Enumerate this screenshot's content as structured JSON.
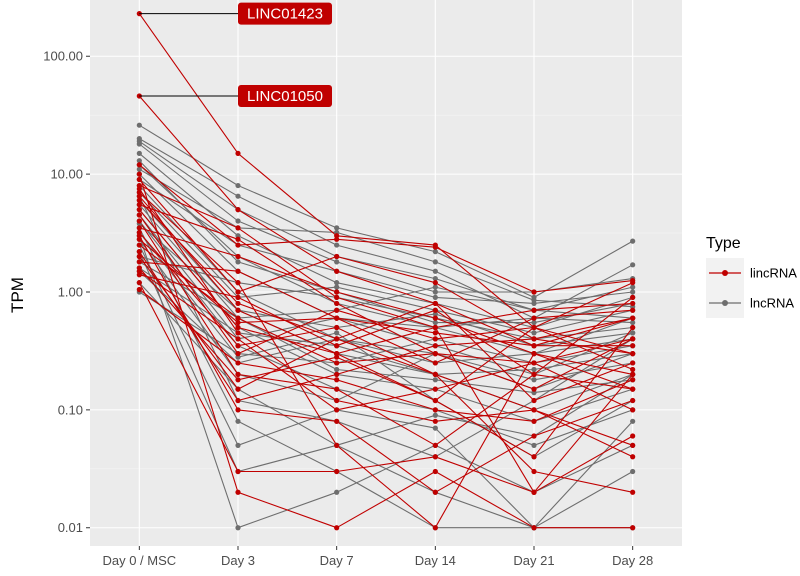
{
  "chart_data": {
    "type": "line",
    "title": "",
    "xlabel": "",
    "ylabel": "TPM",
    "y_scale": "log10",
    "ylim": [
      0.007,
      300
    ],
    "y_ticks": [
      0.01,
      0.1,
      1,
      10,
      100
    ],
    "y_tick_labels": [
      "0.01",
      "0.10",
      "1.00",
      "10.00",
      "100.00"
    ],
    "categories": [
      "Day 0 / MSC",
      "Day 3",
      "Day 7",
      "Day 14",
      "Day 21",
      "Day 28"
    ],
    "grid": true,
    "legend": {
      "title": "Type",
      "placement": "right",
      "entries": [
        {
          "label": "lincRNA",
          "color": "#c00000"
        },
        {
          "label": "lncRNA",
          "color": "#6e6e6e"
        }
      ]
    },
    "annotations": [
      {
        "label": "LINC01423",
        "x": "Day 0 / MSC",
        "y": 230
      },
      {
        "label": "LINC01050",
        "x": "Day 0 / MSC",
        "y": 46
      }
    ],
    "colors": {
      "lincRNA": "#c00000",
      "lncRNA": "#6e6e6e",
      "panel": "#ebebeb",
      "grid": "#ffffff"
    },
    "series": [
      {
        "type": "lincRNA",
        "values": [
          230,
          15,
          3,
          2.5,
          0.5,
          1.2
        ]
      },
      {
        "type": "lincRNA",
        "values": [
          46,
          5,
          1.5,
          0.8,
          0.35,
          0.6
        ]
      },
      {
        "type": "lincRNA",
        "values": [
          12,
          2.5,
          2.8,
          2.4,
          1.0,
          1.25
        ]
      },
      {
        "type": "lincRNA",
        "values": [
          10,
          0.02,
          0.01,
          0.03,
          0.01,
          0.01
        ]
      },
      {
        "type": "lincRNA",
        "values": [
          8,
          3.5,
          0.9,
          0.5,
          0.02,
          0.2
        ]
      },
      {
        "type": "lincRNA",
        "values": [
          7,
          1.2,
          0.05,
          0.01,
          0.3,
          0.15
        ]
      },
      {
        "type": "lincRNA",
        "values": [
          6,
          0.8,
          0.4,
          0.2,
          0.1,
          0.04
        ]
      },
      {
        "type": "lincRNA",
        "values": [
          5,
          0.5,
          0.3,
          0.12,
          0.04,
          0.5
        ]
      },
      {
        "type": "lincRNA",
        "values": [
          4.5,
          0.3,
          0.7,
          0.4,
          0.5,
          0.3
        ]
      },
      {
        "type": "lincRNA",
        "values": [
          4,
          0.2,
          0.15,
          0.05,
          0.2,
          0.9
        ]
      },
      {
        "type": "lincRNA",
        "values": [
          3.5,
          2.0,
          1.0,
          0.6,
          0.3,
          0.2
        ]
      },
      {
        "type": "lincRNA",
        "values": [
          3,
          0.1,
          0.08,
          0.02,
          0.06,
          0.12
        ]
      },
      {
        "type": "lincRNA",
        "values": [
          2.5,
          0.6,
          0.25,
          0.3,
          0.15,
          0.4
        ]
      },
      {
        "type": "lincRNA",
        "values": [
          2,
          0.15,
          0.4,
          0.8,
          0.12,
          0.25
        ]
      },
      {
        "type": "lincRNA",
        "values": [
          1.8,
          1.5,
          0.6,
          0.25,
          0.6,
          0.7
        ]
      },
      {
        "type": "lincRNA",
        "values": [
          1.5,
          0.4,
          0.1,
          0.15,
          0.25,
          0.1
        ]
      },
      {
        "type": "lincRNA",
        "values": [
          1.2,
          0.03,
          0.03,
          0.04,
          0.02,
          0.06
        ]
      },
      {
        "type": "lincRNA",
        "values": [
          1.05,
          0.25,
          0.18,
          0.1,
          0.08,
          0.18
        ]
      },
      {
        "type": "lincRNA",
        "values": [
          9,
          1.0,
          2.0,
          1.2,
          0.4,
          0.3
        ]
      },
      {
        "type": "lincRNA",
        "values": [
          6.5,
          0.7,
          0.3,
          0.5,
          0.7,
          0.8
        ]
      },
      {
        "type": "lincRNA",
        "values": [
          3.2,
          0.35,
          0.5,
          0.2,
          0.03,
          0.02
        ]
      },
      {
        "type": "lincRNA",
        "values": [
          2.2,
          0.12,
          0.2,
          0.35,
          0.4,
          0.6
        ]
      },
      {
        "type": "lincRNA",
        "values": [
          1.4,
          0.9,
          0.35,
          0.7,
          0.2,
          0.15
        ]
      },
      {
        "type": "lincRNA",
        "values": [
          7.5,
          0.45,
          0.12,
          0.08,
          0.1,
          0.05
        ]
      },
      {
        "type": "lincRNA",
        "values": [
          5.5,
          2.8,
          0.8,
          0.3,
          0.25,
          0.4
        ]
      },
      {
        "type": "lincRNA",
        "values": [
          2.8,
          0.55,
          0.6,
          0.45,
          0.35,
          0.35
        ]
      },
      {
        "type": "lincRNA",
        "values": [
          1.6,
          0.18,
          0.28,
          0.12,
          0.5,
          0.22
        ]
      },
      {
        "type": "lncRNA",
        "values": [
          26,
          8,
          3.5,
          2.2,
          0.9,
          2.7
        ]
      },
      {
        "type": "lncRNA",
        "values": [
          20,
          6.5,
          2.5,
          1.5,
          0.6,
          1.7
        ]
      },
      {
        "type": "lncRNA",
        "values": [
          18,
          4.0,
          1.8,
          1.0,
          1.0,
          1.3
        ]
      },
      {
        "type": "lncRNA",
        "values": [
          15,
          3.0,
          1.2,
          0.8,
          0.5,
          0.9
        ]
      },
      {
        "type": "lncRNA",
        "values": [
          12,
          2.0,
          0.8,
          0.5,
          0.3,
          0.6
        ]
      },
      {
        "type": "lncRNA",
        "values": [
          10,
          1.5,
          0.6,
          0.35,
          0.2,
          0.45
        ]
      },
      {
        "type": "lncRNA",
        "values": [
          8,
          1.0,
          0.4,
          0.3,
          0.15,
          0.3
        ]
      },
      {
        "type": "lncRNA",
        "values": [
          6,
          0.7,
          0.3,
          0.2,
          0.1,
          0.2
        ]
      },
      {
        "type": "lncRNA",
        "values": [
          5,
          0.5,
          0.2,
          0.15,
          0.08,
          0.15
        ]
      },
      {
        "type": "lncRNA",
        "values": [
          4,
          0.35,
          0.15,
          0.1,
          0.05,
          0.1
        ]
      },
      {
        "type": "lncRNA",
        "values": [
          3.5,
          0.08,
          0.03,
          0.01,
          0.01,
          0.03
        ]
      },
      {
        "type": "lncRNA",
        "values": [
          3,
          0.01,
          0.02,
          0.05,
          0.02,
          0.05
        ]
      },
      {
        "type": "lncRNA",
        "values": [
          2.5,
          0.05,
          0.1,
          0.07,
          0.01,
          0.08
        ]
      },
      {
        "type": "lncRNA",
        "values": [
          2,
          1.2,
          0.9,
          0.6,
          0.4,
          0.5
        ]
      },
      {
        "type": "lncRNA",
        "values": [
          1.8,
          0.6,
          0.7,
          1.1,
          0.7,
          0.6
        ]
      },
      {
        "type": "lncRNA",
        "values": [
          1.5,
          0.25,
          0.4,
          0.25,
          0.3,
          0.4
        ]
      },
      {
        "type": "lncRNA",
        "values": [
          1.2,
          0.15,
          0.05,
          0.02,
          0.01,
          0.01
        ]
      },
      {
        "type": "lncRNA",
        "values": [
          1.0,
          0.3,
          0.25,
          0.4,
          0.25,
          0.35
        ]
      },
      {
        "type": "lncRNA",
        "values": [
          9,
          2.5,
          1.5,
          0.9,
          0.8,
          1.0
        ]
      },
      {
        "type": "lncRNA",
        "values": [
          7,
          0.9,
          1.1,
          0.7,
          0.45,
          0.7
        ]
      },
      {
        "type": "lncRNA",
        "values": [
          4.5,
          0.4,
          0.6,
          0.5,
          0.6,
          0.55
        ]
      },
      {
        "type": "lncRNA",
        "values": [
          2.8,
          0.2,
          0.12,
          0.3,
          0.18,
          0.25
        ]
      },
      {
        "type": "lncRNA",
        "values": [
          19,
          5.0,
          2.0,
          1.3,
          0.7,
          1.1
        ]
      },
      {
        "type": "lncRNA",
        "values": [
          11,
          3.5,
          3.2,
          1.8,
          0.85,
          0.75
        ]
      },
      {
        "type": "lncRNA",
        "values": [
          6.5,
          0.12,
          0.08,
          0.04,
          0.12,
          0.4
        ]
      },
      {
        "type": "lncRNA",
        "values": [
          3.8,
          0.7,
          0.5,
          0.65,
          0.35,
          0.45
        ]
      },
      {
        "type": "lncRNA",
        "values": [
          2.2,
          0.03,
          0.05,
          0.09,
          0.06,
          0.2
        ]
      },
      {
        "type": "lncRNA",
        "values": [
          1.6,
          0.45,
          0.35,
          0.2,
          0.22,
          0.3
        ]
      },
      {
        "type": "lncRNA",
        "values": [
          13,
          1.8,
          1.0,
          0.55,
          0.55,
          0.8
        ]
      },
      {
        "type": "lncRNA",
        "values": [
          5.5,
          0.6,
          0.22,
          0.18,
          0.14,
          0.18
        ]
      },
      {
        "type": "lncRNA",
        "values": [
          3.2,
          0.28,
          0.45,
          0.12,
          0.04,
          0.12
        ]
      }
    ]
  }
}
